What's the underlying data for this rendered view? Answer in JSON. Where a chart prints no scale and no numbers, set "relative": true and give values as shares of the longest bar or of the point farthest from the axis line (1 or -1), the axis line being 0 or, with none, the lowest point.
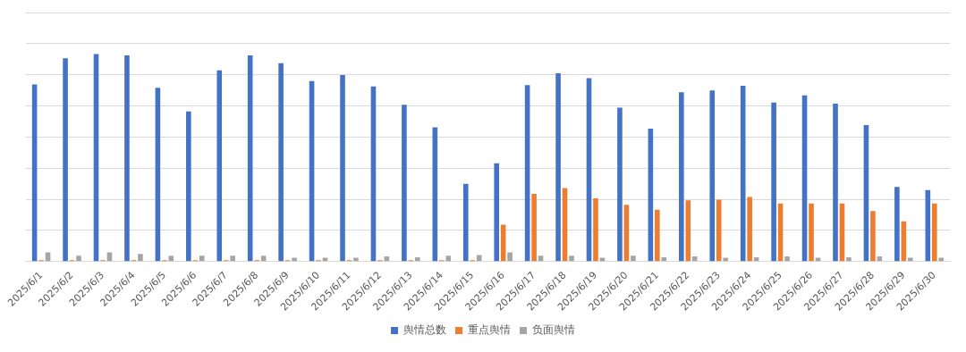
{
  "chart_data": {
    "type": "bar",
    "relative": true,
    "grid": "y",
    "legend": "bottom",
    "categories": [
      "2025/6/1",
      "2025/6/2",
      "2025/6/3",
      "2025/6/4",
      "2025/6/5",
      "2025/6/6",
      "2025/6/7",
      "2025/6/8",
      "2025/6/9",
      "2025/6/10",
      "2025/6/11",
      "2025/6/12",
      "2025/6/13",
      "2025/6/14",
      "2025/6/15",
      "2025/6/16",
      "2025/6/17",
      "2025/6/18",
      "2025/6/19",
      "2025/6/20",
      "2025/6/21",
      "2025/6/22",
      "2025/6/23",
      "2025/6/24",
      "2025/6/25",
      "2025/6/26",
      "2025/6/27",
      "2025/6/28",
      "2025/6/29",
      "2025/6/30"
    ],
    "series": [
      {
        "name": "舆情总数",
        "color": "#4472c4",
        "values": [
          0.853,
          0.979,
          1,
          0.993,
          0.837,
          0.723,
          0.921,
          0.993,
          0.956,
          0.87,
          0.899,
          0.844,
          0.756,
          0.647,
          0.375,
          0.474,
          0.85,
          0.907,
          0.884,
          0.742,
          0.64,
          0.816,
          0.824,
          0.847,
          0.766,
          0.801,
          0.761,
          0.658,
          0.36,
          0.345
        ]
      },
      {
        "name": "重点舆情",
        "color": "#ed7d31",
        "values": [
          0.007,
          0.007,
          0.007,
          0.007,
          0.007,
          0.007,
          0.007,
          0.007,
          0.007,
          0.007,
          0.007,
          0.007,
          0.007,
          0.007,
          0.007,
          0.178,
          0.326,
          0.354,
          0.305,
          0.274,
          0.25,
          0.295,
          0.298,
          0.311,
          0.28,
          0.28,
          0.28,
          0.243,
          0.194,
          0.28
        ]
      },
      {
        "name": "负面舆情",
        "color": "#a5a5a5",
        "values": [
          0.044,
          0.028,
          0.044,
          0.037,
          0.028,
          0.028,
          0.028,
          0.028,
          0.018,
          0.018,
          0.018,
          0.025,
          0.021,
          0.028,
          0.031,
          0.044,
          0.028,
          0.028,
          0.018,
          0.028,
          0.021,
          0.025,
          0.018,
          0.021,
          0.025,
          0.018,
          0.021,
          0.025,
          0.018,
          0.018
        ]
      }
    ]
  }
}
